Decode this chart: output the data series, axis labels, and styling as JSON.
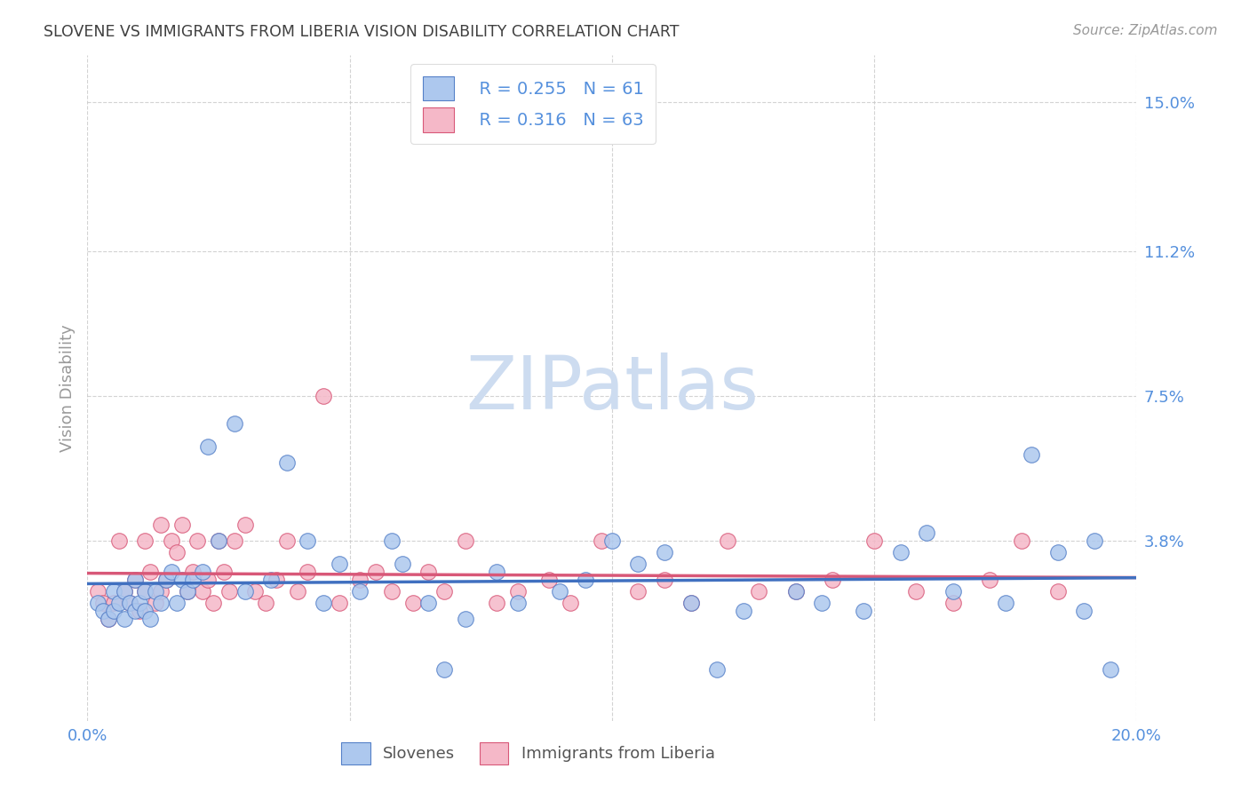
{
  "title": "SLOVENE VS IMMIGRANTS FROM LIBERIA VISION DISABILITY CORRELATION CHART",
  "source": "Source: ZipAtlas.com",
  "ylabel": "Vision Disability",
  "xlim": [
    0.0,
    0.2
  ],
  "ylim": [
    -0.008,
    0.162
  ],
  "ytick_positions": [
    0.038,
    0.075,
    0.112,
    0.15
  ],
  "ytick_labels": [
    "3.8%",
    "7.5%",
    "11.2%",
    "15.0%"
  ],
  "series1_name": "Slovenes",
  "series1_color": "#adc8ee",
  "series1_edge_color": "#5580c8",
  "series1_line_color": "#4070c0",
  "series1_R": 0.255,
  "series1_N": 61,
  "series2_name": "Immigrants from Liberia",
  "series2_color": "#f5b8c8",
  "series2_edge_color": "#d85878",
  "series2_line_color": "#d85878",
  "series2_R": 0.316,
  "series2_N": 63,
  "background_color": "#ffffff",
  "watermark": "ZIPatlas",
  "watermark_color": "#cddcf0",
  "grid_color": "#c8c8c8",
  "title_color": "#404040",
  "axis_tick_color": "#5590dd",
  "legend_text_color": "#5590dd",
  "scatter1_x": [
    0.002,
    0.003,
    0.004,
    0.005,
    0.005,
    0.006,
    0.007,
    0.007,
    0.008,
    0.009,
    0.009,
    0.01,
    0.011,
    0.011,
    0.012,
    0.013,
    0.014,
    0.015,
    0.016,
    0.017,
    0.018,
    0.019,
    0.02,
    0.022,
    0.023,
    0.025,
    0.028,
    0.03,
    0.035,
    0.038,
    0.042,
    0.045,
    0.048,
    0.052,
    0.058,
    0.06,
    0.065,
    0.068,
    0.072,
    0.078,
    0.082,
    0.09,
    0.095,
    0.1,
    0.105,
    0.11,
    0.115,
    0.12,
    0.125,
    0.135,
    0.14,
    0.148,
    0.155,
    0.16,
    0.165,
    0.175,
    0.18,
    0.185,
    0.19,
    0.192,
    0.195
  ],
  "scatter1_y": [
    0.022,
    0.02,
    0.018,
    0.025,
    0.02,
    0.022,
    0.018,
    0.025,
    0.022,
    0.02,
    0.028,
    0.022,
    0.025,
    0.02,
    0.018,
    0.025,
    0.022,
    0.028,
    0.03,
    0.022,
    0.028,
    0.025,
    0.028,
    0.03,
    0.062,
    0.038,
    0.068,
    0.025,
    0.028,
    0.058,
    0.038,
    0.022,
    0.032,
    0.025,
    0.038,
    0.032,
    0.022,
    0.005,
    0.018,
    0.03,
    0.022,
    0.025,
    0.028,
    0.038,
    0.032,
    0.035,
    0.022,
    0.005,
    0.02,
    0.025,
    0.022,
    0.02,
    0.035,
    0.04,
    0.025,
    0.022,
    0.06,
    0.035,
    0.02,
    0.038,
    0.005
  ],
  "scatter2_x": [
    0.002,
    0.003,
    0.004,
    0.005,
    0.006,
    0.007,
    0.008,
    0.009,
    0.01,
    0.011,
    0.011,
    0.012,
    0.013,
    0.014,
    0.014,
    0.015,
    0.016,
    0.017,
    0.018,
    0.019,
    0.02,
    0.021,
    0.022,
    0.023,
    0.024,
    0.025,
    0.026,
    0.027,
    0.028,
    0.03,
    0.032,
    0.034,
    0.036,
    0.038,
    0.04,
    0.042,
    0.045,
    0.048,
    0.052,
    0.055,
    0.058,
    0.062,
    0.065,
    0.068,
    0.072,
    0.078,
    0.082,
    0.088,
    0.092,
    0.098,
    0.105,
    0.11,
    0.115,
    0.122,
    0.128,
    0.135,
    0.142,
    0.15,
    0.158,
    0.165,
    0.172,
    0.178,
    0.185
  ],
  "scatter2_y": [
    0.025,
    0.022,
    0.018,
    0.022,
    0.038,
    0.025,
    0.022,
    0.028,
    0.02,
    0.025,
    0.038,
    0.03,
    0.022,
    0.025,
    0.042,
    0.028,
    0.038,
    0.035,
    0.042,
    0.025,
    0.03,
    0.038,
    0.025,
    0.028,
    0.022,
    0.038,
    0.03,
    0.025,
    0.038,
    0.042,
    0.025,
    0.022,
    0.028,
    0.038,
    0.025,
    0.03,
    0.075,
    0.022,
    0.028,
    0.03,
    0.025,
    0.022,
    0.03,
    0.025,
    0.038,
    0.022,
    0.025,
    0.028,
    0.022,
    0.038,
    0.025,
    0.028,
    0.022,
    0.038,
    0.025,
    0.025,
    0.028,
    0.038,
    0.025,
    0.022,
    0.028,
    0.038,
    0.025
  ]
}
